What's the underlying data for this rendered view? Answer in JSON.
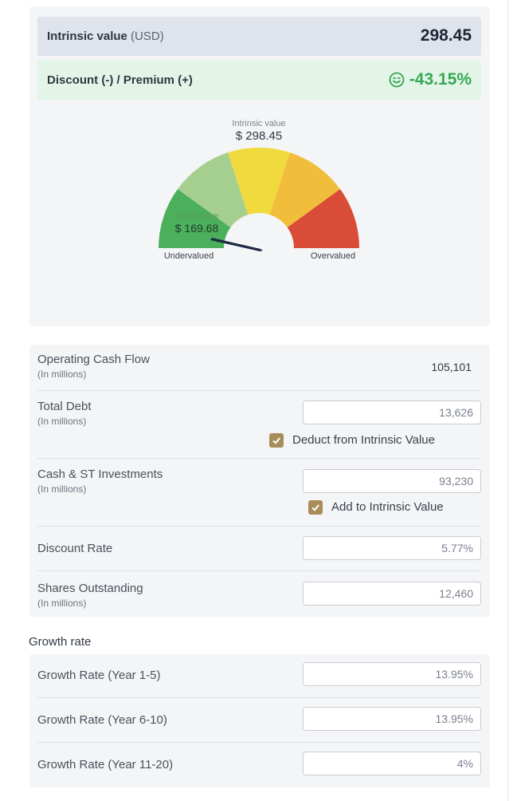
{
  "summary": {
    "intrinsic_label": "Intrinsic value",
    "intrinsic_unit": "(USD)",
    "intrinsic_value": "298.45",
    "discount_label": "Discount (-) / Premium (+)",
    "discount_value": "-43.15%",
    "discount_icon": "smile-icon",
    "discount_color": "#34a853"
  },
  "gauge": {
    "intrinsic_caption": "Intrinsic value",
    "intrinsic_value": "$ 298.45",
    "stock_caption": "Stock price",
    "stock_value": "$ 169.68",
    "left_label": "Undervalued",
    "right_label": "Overvalued",
    "segment_colors": [
      "#4caf5c",
      "#a5cf8f",
      "#f1da3e",
      "#f1be3b",
      "#d94c38"
    ]
  },
  "inputs": {
    "operating_cash_flow": {
      "label": "Operating Cash Flow",
      "sub": "(In millions)",
      "value": "105,101"
    },
    "total_debt": {
      "label": "Total Debt",
      "sub": "(In millions)",
      "value": "13,626",
      "checkbox_label": "Deduct from Intrinsic Value",
      "checked": true
    },
    "cash_st": {
      "label": "Cash & ST Investments",
      "sub": "(In millions)",
      "value": "93,230",
      "checkbox_label": "Add to Intrinsic Value",
      "checked": true
    },
    "discount_rate": {
      "label": "Discount Rate",
      "value": "5.77%"
    },
    "shares_outstanding": {
      "label": "Shares Outstanding",
      "sub": "(In millions)",
      "value": "12,460"
    }
  },
  "growth": {
    "title": "Growth rate",
    "year_1_5": {
      "label": "Growth Rate (Year 1-5)",
      "value": "13.95%"
    },
    "year_6_10": {
      "label": "Growth Rate (Year 6-10)",
      "value": "13.95%"
    },
    "year_11_20": {
      "label": "Growth Rate (Year 11-20)",
      "value": "4%"
    }
  }
}
